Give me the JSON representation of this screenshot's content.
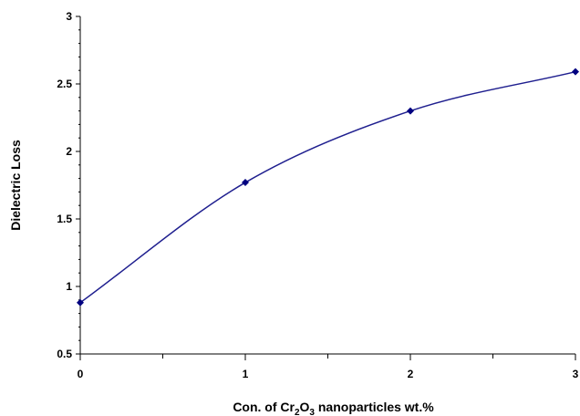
{
  "chart_data": {
    "type": "line",
    "title": "",
    "xlabel": {
      "prefix": "Con. of Cr",
      "sub1": "2",
      "mid": "O",
      "sub2": "3",
      "suffix": " nanoparticles wt.%"
    },
    "ylabel": "Dielectric Loss",
    "xlim": [
      0,
      3
    ],
    "ylim": [
      0.5,
      3
    ],
    "x_ticks": [
      0,
      1,
      2,
      3
    ],
    "y_ticks": [
      0.5,
      1,
      1.5,
      2,
      2.5,
      3
    ],
    "x_minor_step": 0.5,
    "y_minor_step": 0.1,
    "grid": false,
    "line_color": "#1f1f8f",
    "marker_color": "#000080",
    "marker": "diamond",
    "smooth": true,
    "series": [
      {
        "x": [
          0,
          1,
          2,
          3
        ],
        "y": [
          0.88,
          1.77,
          2.3,
          2.59
        ]
      }
    ]
  }
}
